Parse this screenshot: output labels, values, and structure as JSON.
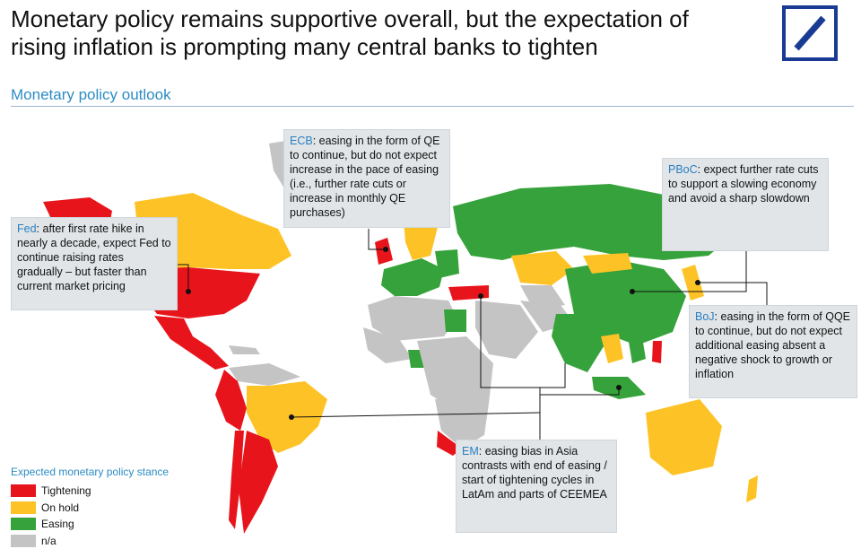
{
  "header": {
    "title": "Monetary policy remains supportive overall, but the expectation of rising inflation is prompting many central banks to tighten",
    "subtitle": "Monetary policy outlook"
  },
  "colors": {
    "tightening": "#e8141c",
    "on_hold": "#fdc326",
    "easing": "#36a23b",
    "na": "#c4c4c4",
    "accent": "#2b8cc4",
    "logo": "#1a3b94"
  },
  "callouts": {
    "ecb": {
      "lead": "ECB",
      "text": ": easing in the form of QE to continue, but do not expect increase in the pace of easing (i.e., further rate cuts or increase in monthly QE purchases)"
    },
    "fed": {
      "lead": "Fed",
      "text": ": after first rate hike in nearly a decade, expect Fed to continue raising rates gradually – but faster than current market pricing"
    },
    "pboc": {
      "lead": "PBoC",
      "text": ": expect further rate cuts to support a slowing economy and avoid a sharp slowdown"
    },
    "boj": {
      "lead": "BoJ",
      "text": ": easing in the form of QQE to continue, but do not expect additional easing absent a negative shock to growth or inflation"
    },
    "em": {
      "lead": "EM",
      "text": ": easing bias in Asia contrasts with end of easing / start of tightening cycles in LatAm and parts of CEEMEA"
    }
  },
  "legend": {
    "title": "Expected monetary policy stance",
    "items": [
      {
        "label": "Tightening",
        "color": "#e8141c"
      },
      {
        "label": "On hold",
        "color": "#fdc326"
      },
      {
        "label": "Easing",
        "color": "#36a23b"
      },
      {
        "label": "n/a",
        "color": "#c4c4c4"
      }
    ]
  }
}
